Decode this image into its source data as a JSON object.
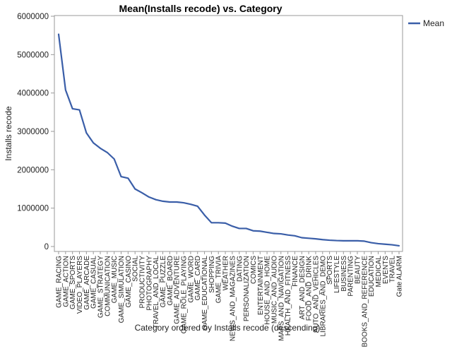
{
  "chart_data": {
    "type": "line",
    "title": "Mean(Installs recode) vs. Category",
    "xlabel": "Category ordered by Installs recode (descending)",
    "ylabel": "Installs recode",
    "ylim": [
      0,
      6000000
    ],
    "yticks": [
      0,
      1000000,
      2000000,
      3000000,
      4000000,
      5000000,
      6000000
    ],
    "ytick_labels": [
      "0",
      "1000000",
      "2000000",
      "3000000",
      "4000000",
      "5000000",
      "6000000"
    ],
    "grid": false,
    "legend_position": "top-right",
    "categories": [
      "GAME_RACING",
      "GAME_ACTION",
      "GAME_SPORTS",
      "VIDEO_PLAYERS",
      "GAME_ARCADE",
      "GAME_CASUAL",
      "GAME_STRATEGY",
      "COMMUNICATION",
      "GAME_MUSIC",
      "GAME_SIMULATION",
      "GAME_CASINO",
      "SOCIAL",
      "PRODUCTIVITY",
      "PHOTOGRAPHY",
      "TRAVEL_AND_LOCAL",
      "GAME_PUZZLE",
      "GAME_BOARD",
      "GAME_ADVENTURE",
      "GAME_ROLE_PLAYING",
      "GAME_WORD",
      "GAME_CARD",
      "GAME_EDUCATIONAL",
      "SHOPPING",
      "GAME_TRIVIA",
      "WEATHER",
      "NEWS_AND_MAGAZINES",
      "DATING",
      "PERSONALIZATION",
      "COMICS",
      "ENTERTAINMENT",
      "HOUSE_AND_HOME",
      "MUSIC_AND_AUDIO",
      "MAPS_AND_NAVIGATION",
      "HEALTH_AND_FITNESS",
      "FINANCE",
      "ART_AND_DESIGN",
      "FOOD_AND_DRINK",
      "AUTO_AND_VEHICLES",
      "LIBRARIES_AND_DEMO",
      "SPORTS",
      "LIFESTYLE",
      "BUSINESS",
      "PARENTING",
      "BEAUTY",
      "BOOKS_AND_REFERENCE",
      "EDUCATION",
      "MEDICAL",
      "EVENTS",
      "TRAVEL",
      "Gate ALARM"
    ],
    "series": [
      {
        "name": "Mean",
        "color": "#3a5ea8",
        "values": [
          5530000,
          4080000,
          3590000,
          3560000,
          2960000,
          2700000,
          2560000,
          2450000,
          2280000,
          1820000,
          1780000,
          1500000,
          1400000,
          1290000,
          1220000,
          1180000,
          1160000,
          1160000,
          1140000,
          1100000,
          1050000,
          820000,
          620000,
          620000,
          610000,
          530000,
          470000,
          470000,
          410000,
          400000,
          370000,
          340000,
          330000,
          300000,
          280000,
          230000,
          215000,
          200000,
          180000,
          165000,
          155000,
          150000,
          150000,
          150000,
          140000,
          100000,
          75000,
          60000,
          45000,
          20000
        ]
      }
    ]
  }
}
